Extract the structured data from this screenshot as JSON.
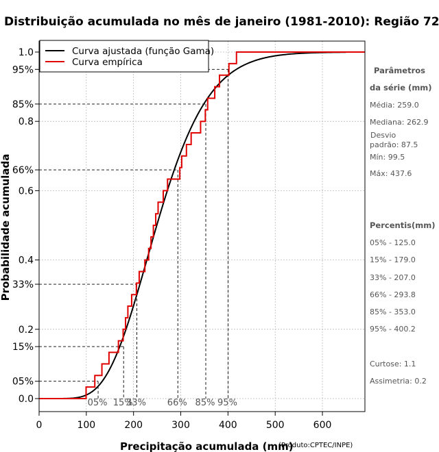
{
  "chart_data": {
    "type": "line",
    "title": "Distribuição acumulada no mês de janeiro (1981-2010): Região 72",
    "xlabel": "Precipitação acumulada (mm)",
    "ylabel": "Probabilidade acumulada",
    "credit": "(Produto:CPTEC/INPE)",
    "xlim": [
      0,
      690
    ],
    "ylim": [
      -0.02,
      1.04
    ],
    "x_ticks": [
      "0",
      "100",
      "200",
      "300",
      "400",
      "500",
      "600"
    ],
    "y_ticks": [
      {
        "value": 0.0,
        "label": "0.0"
      },
      {
        "value": 0.05,
        "label": "05%"
      },
      {
        "value": 0.15,
        "label": "15%"
      },
      {
        "value": 0.2,
        "label": "0.2"
      },
      {
        "value": 0.33,
        "label": "33%"
      },
      {
        "value": 0.4,
        "label": "0.4"
      },
      {
        "value": 0.6,
        "label": "0.6"
      },
      {
        "value": 0.66,
        "label": "66%"
      },
      {
        "value": 0.8,
        "label": "0.8"
      },
      {
        "value": 0.85,
        "label": "85%"
      },
      {
        "value": 0.95,
        "label": "95%"
      },
      {
        "value": 1.0,
        "label": "1.0"
      }
    ],
    "grid_x": [
      100,
      200,
      300,
      400,
      500,
      600
    ],
    "grid_y": [
      0.0,
      0.2,
      0.4,
      0.6,
      0.8,
      1.0
    ],
    "legend": {
      "position": "top-left",
      "entries": [
        {
          "label": "Curva ajustada (função Gama)",
          "color": "#000000"
        },
        {
          "label": "Curva empírica",
          "color": "#e00000"
        }
      ]
    },
    "gamma_fit": {
      "mean": 259.0,
      "sd": 87.5,
      "color": "#000000"
    },
    "empirical_steps": {
      "color": "#e00000",
      "x": [
        99.5,
        118,
        133,
        148,
        168,
        178,
        183,
        188,
        196,
        206,
        212,
        224,
        232,
        237,
        242,
        247,
        252,
        262.9,
        272,
        298,
        302,
        312,
        322,
        342,
        352,
        357,
        372,
        382,
        402,
        418,
        437.6
      ],
      "y": [
        0.0333,
        0.0667,
        0.1,
        0.1333,
        0.1667,
        0.2,
        0.2333,
        0.2667,
        0.3,
        0.3333,
        0.3667,
        0.4,
        0.4333,
        0.4667,
        0.5,
        0.5333,
        0.5667,
        0.6,
        0.6333,
        0.6667,
        0.7,
        0.7333,
        0.7667,
        0.8,
        0.8333,
        0.8667,
        0.9,
        0.9333,
        0.9667,
        1.0,
        1.0
      ]
    },
    "percentiles": [
      {
        "label": "05%",
        "p": 0.05,
        "value": 125.0
      },
      {
        "label": "15%",
        "p": 0.15,
        "value": 179.0
      },
      {
        "label": "33%",
        "p": 0.33,
        "value": 207.0
      },
      {
        "label": "66%",
        "p": 0.66,
        "value": 293.8
      },
      {
        "label": "85%",
        "p": 0.85,
        "value": 353.0
      },
      {
        "label": "95%",
        "p": 0.95,
        "value": 400.2
      }
    ]
  },
  "side_panel": {
    "params_title_1": "Parâmetros",
    "params_title_2": "da série (mm)",
    "media": "Média: 259.0",
    "mediana": "Mediana: 262.9",
    "desvio_1": "Desvio",
    "desvio_2": "padrão: 87.5",
    "min": "Mín: 99.5",
    "max": "Máx: 437.6",
    "percentis_title": "Percentis(mm)",
    "percentis": [
      "05% - 125.0",
      "15% - 179.0",
      "33% - 207.0",
      "66% - 293.8",
      "85% - 353.0",
      "95% - 400.2"
    ],
    "curtose": "Curtose: 1.1",
    "assimetria": "Assimetria: 0.2"
  }
}
